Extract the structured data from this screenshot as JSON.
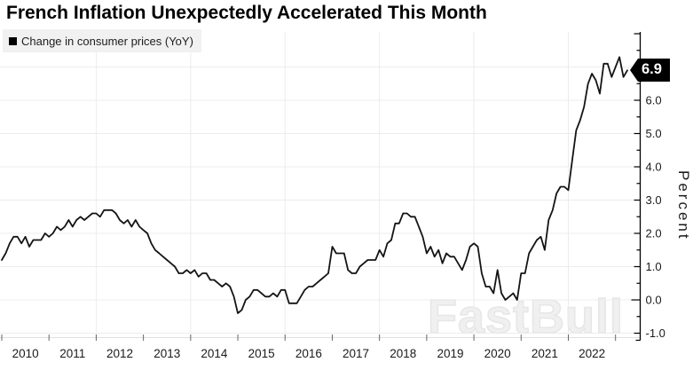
{
  "title": "French Inflation Unexpectedly Accelerated This Month",
  "legend": {
    "label": "Change in consumer prices (YoY)"
  },
  "y_axis": {
    "label": "Percent",
    "badge_value": "6.9"
  },
  "watermark": "FastBull",
  "colors": {
    "line": "#141414",
    "grid": "#ececec",
    "baseline": "#e0e0e0",
    "axis": "#000000",
    "year_tick": "#666666",
    "tick_label": "#1a1a1a",
    "badge_bg": "#000000",
    "badge_text": "#ffffff",
    "legend_bg": "#f1f1f1",
    "watermark_color": "#f0f0f0"
  },
  "chart_data": {
    "type": "line",
    "title": "French Inflation Unexpectedly Accelerated This Month",
    "xlabel": "",
    "ylabel": "Percent",
    "x_unit": "month",
    "x_start": "2010-01",
    "x_end": "2023-04",
    "x_tick_labels": [
      "2010",
      "2011",
      "2012",
      "2013",
      "2014",
      "2015",
      "2016",
      "2017",
      "2018",
      "2019",
      "2020",
      "2021",
      "2022"
    ],
    "grid_years": [
      2012,
      2014,
      2016,
      2018,
      2020,
      2022
    ],
    "ylim": [
      -1.25,
      8.05
    ],
    "y_labeled_ticks": [
      -1.0,
      0.0,
      1.0,
      2.0,
      3.0,
      4.0,
      5.0,
      6.0
    ],
    "y_minor_step": 0.5,
    "grid": true,
    "legend_position": "top-left",
    "last_value_label": "6.9",
    "series": [
      {
        "name": "Change in consumer prices (YoY)",
        "values": [
          1.2,
          1.4,
          1.7,
          1.9,
          1.9,
          1.7,
          1.9,
          1.6,
          1.8,
          1.8,
          1.8,
          2.0,
          1.9,
          2.0,
          2.2,
          2.1,
          2.2,
          2.4,
          2.2,
          2.4,
          2.5,
          2.4,
          2.5,
          2.6,
          2.6,
          2.5,
          2.7,
          2.7,
          2.7,
          2.6,
          2.4,
          2.3,
          2.4,
          2.2,
          2.4,
          2.2,
          2.1,
          2.0,
          1.7,
          1.5,
          1.4,
          1.3,
          1.2,
          1.1,
          1.0,
          0.8,
          0.8,
          0.9,
          0.8,
          0.9,
          0.7,
          0.8,
          0.8,
          0.6,
          0.6,
          0.5,
          0.4,
          0.5,
          0.4,
          0.1,
          -0.4,
          -0.3,
          0.0,
          0.1,
          0.3,
          0.3,
          0.2,
          0.1,
          0.1,
          0.2,
          0.1,
          0.3,
          0.3,
          -0.1,
          -0.1,
          -0.1,
          0.1,
          0.3,
          0.4,
          0.4,
          0.5,
          0.6,
          0.7,
          0.8,
          1.6,
          1.4,
          1.4,
          1.4,
          0.9,
          0.8,
          0.8,
          1.0,
          1.1,
          1.2,
          1.2,
          1.2,
          1.5,
          1.3,
          1.7,
          1.8,
          2.3,
          2.3,
          2.6,
          2.6,
          2.5,
          2.5,
          2.2,
          1.9,
          1.4,
          1.6,
          1.3,
          1.5,
          1.1,
          1.4,
          1.3,
          1.3,
          1.1,
          0.9,
          1.2,
          1.6,
          1.7,
          1.6,
          0.8,
          0.4,
          0.4,
          0.2,
          0.9,
          0.2,
          0.0,
          0.1,
          0.2,
          0.0,
          0.8,
          0.8,
          1.4,
          1.6,
          1.8,
          1.9,
          1.5,
          2.4,
          2.7,
          3.2,
          3.4,
          3.4,
          3.3,
          4.2,
          5.1,
          5.4,
          5.8,
          6.5,
          6.8,
          6.6,
          6.2,
          7.1,
          7.1,
          6.7,
          7.0,
          7.3,
          6.7,
          6.9
        ]
      }
    ]
  }
}
